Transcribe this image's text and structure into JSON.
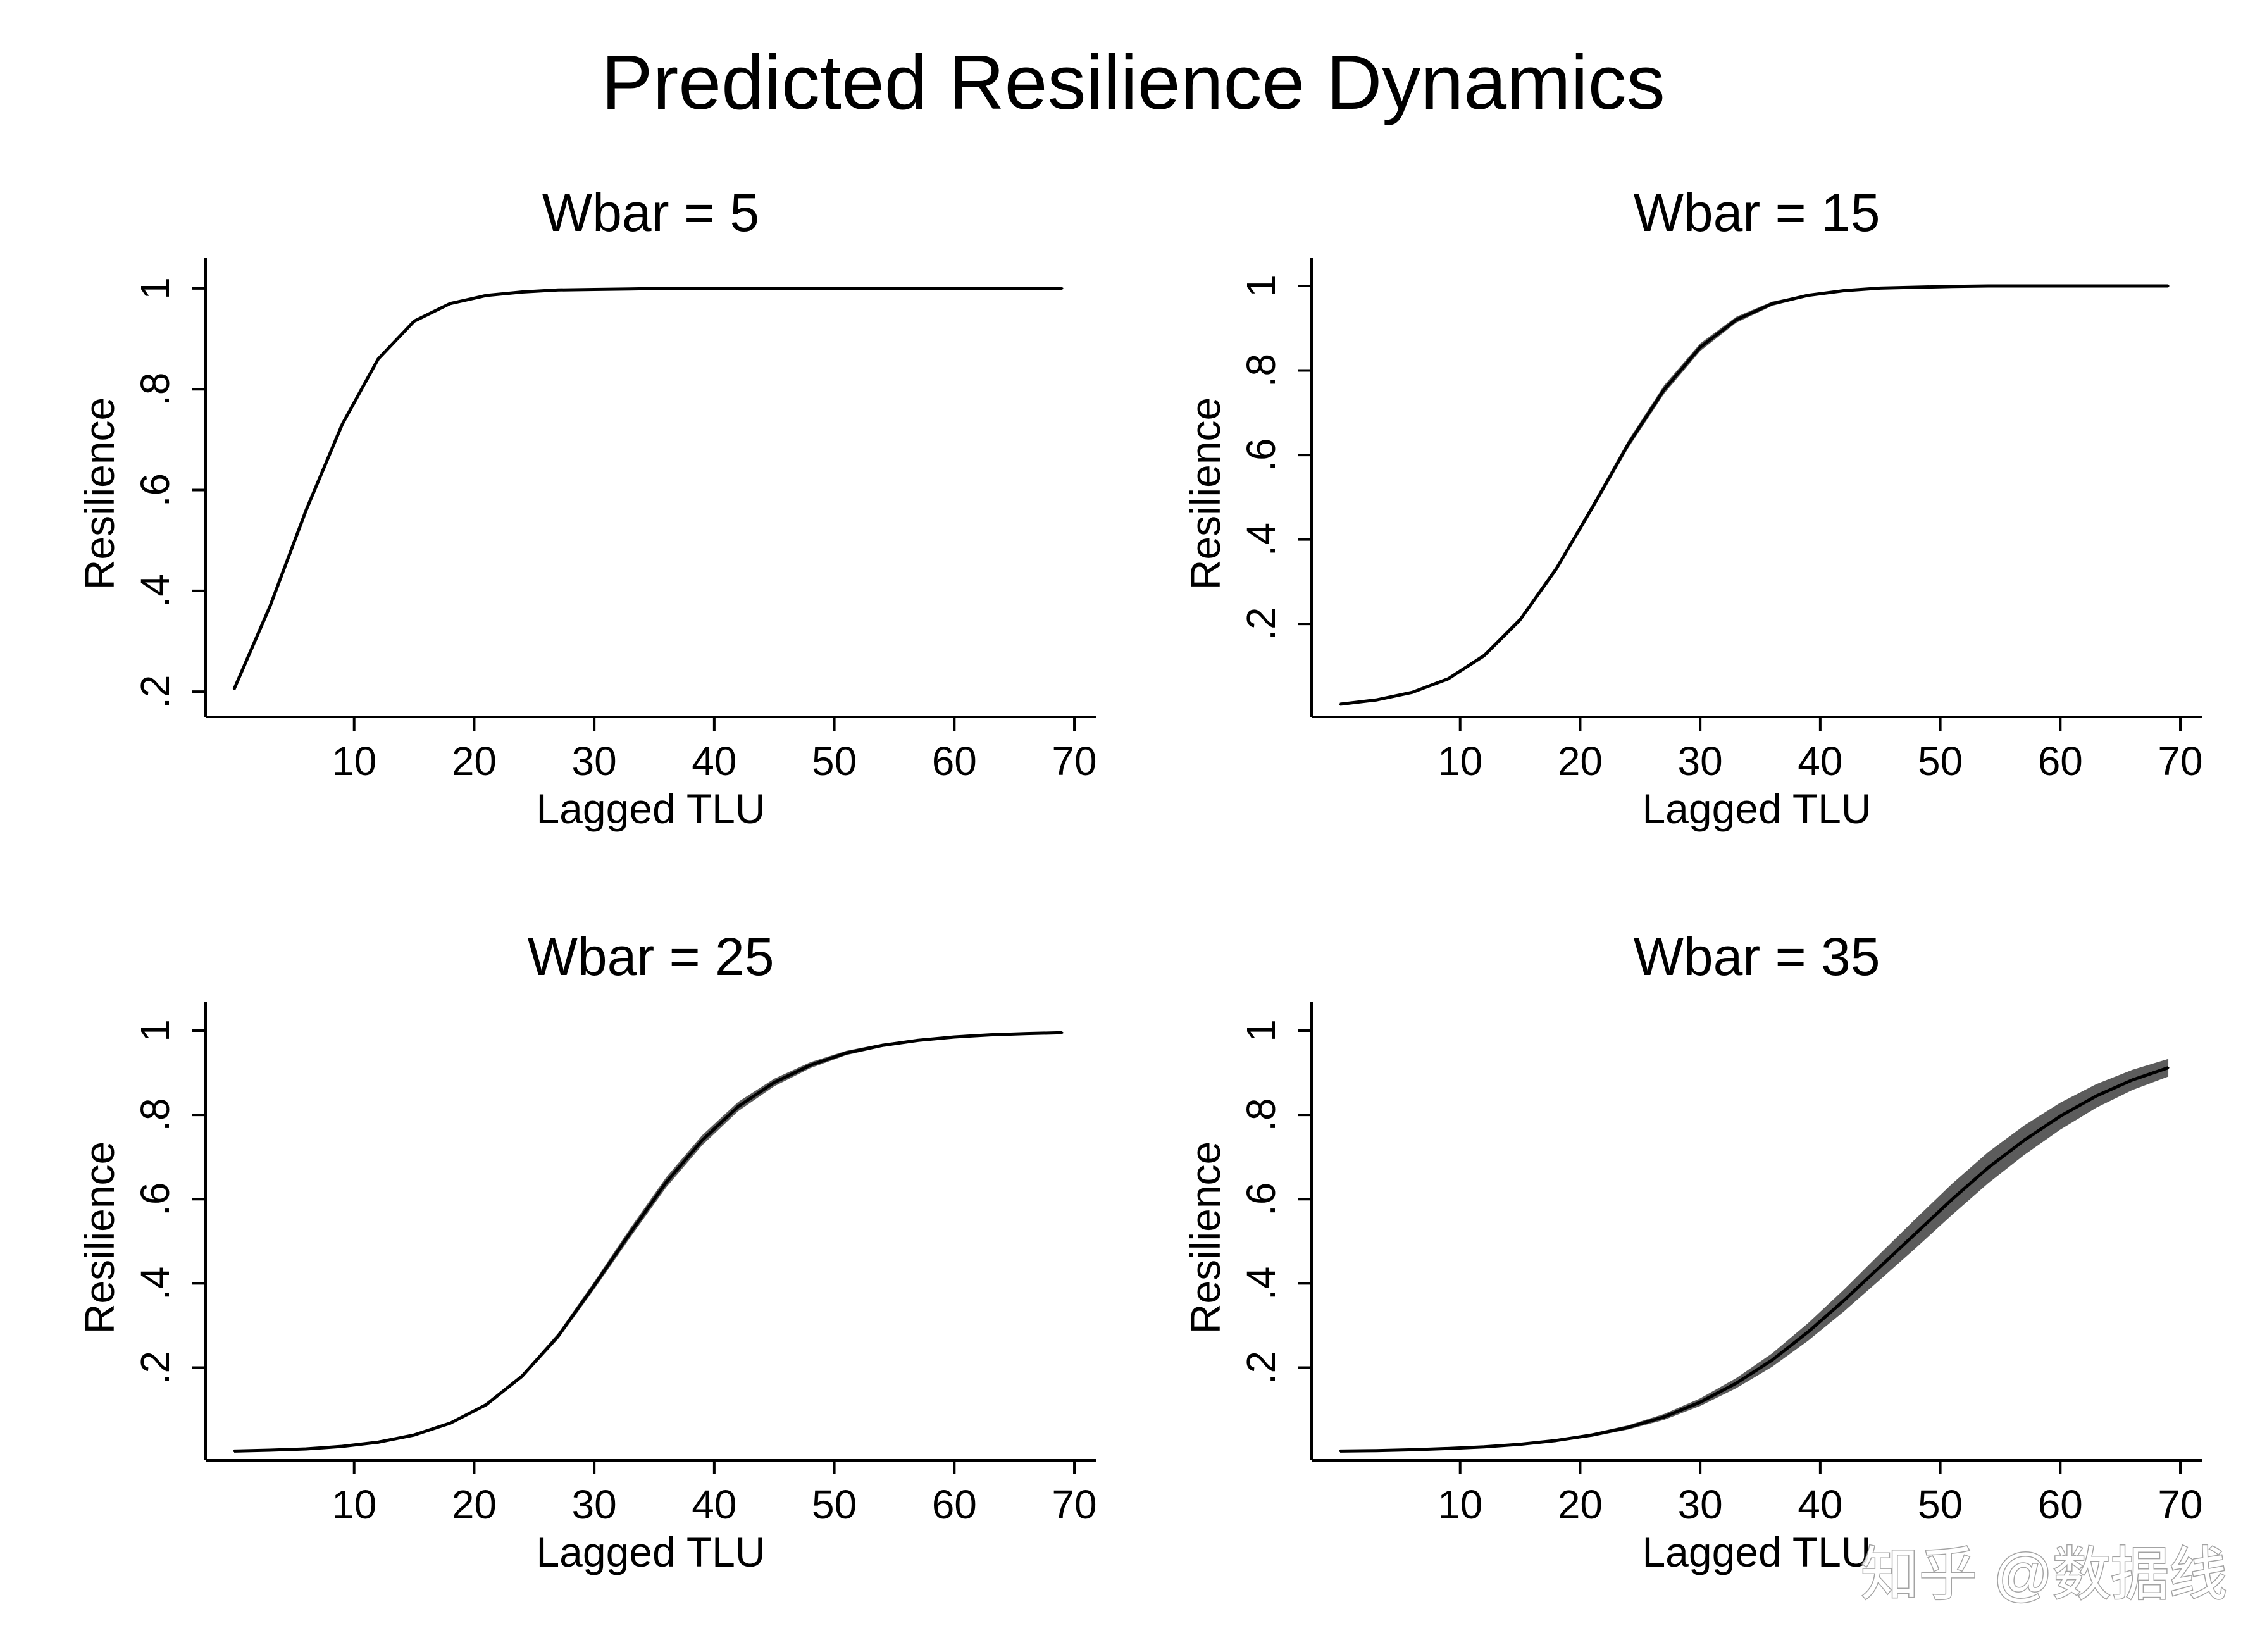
{
  "figure": {
    "title": "Predicted Resilience Dynamics",
    "watermark": "知乎 @数据线"
  },
  "colors": {
    "line": "#000000",
    "band": "#5c5c5c",
    "axis": "#000000",
    "background": "#ffffff"
  },
  "chart_data": [
    {
      "type": "line",
      "title": "Wbar = 5",
      "xlabel": "Lagged TLU",
      "ylabel": "Resilience",
      "xlim": [
        0,
        71
      ],
      "ylim": [
        0.15,
        1.03
      ],
      "xticks": [
        10,
        20,
        30,
        40,
        50,
        60,
        70
      ],
      "xtick_labels": [
        "10",
        "20",
        "30",
        "40",
        "50",
        "60",
        "70"
      ],
      "yticks": [
        0.2,
        0.4,
        0.6,
        0.8,
        1.0
      ],
      "ytick_labels": [
        ".2",
        ".4",
        ".6",
        ".8",
        "1"
      ],
      "grid": false,
      "x": [
        0,
        3,
        6,
        9,
        12,
        15,
        18,
        21,
        24,
        27,
        30,
        33,
        36,
        39,
        42,
        45,
        48,
        51,
        54,
        57,
        60,
        63,
        66,
        69
      ],
      "series": [
        {
          "values": [
            0.205,
            0.37,
            0.56,
            0.73,
            0.86,
            0.935,
            0.97,
            0.986,
            0.993,
            0.997,
            0.998,
            0.999,
            1,
            1,
            1,
            1,
            1,
            1,
            1,
            1,
            1,
            1,
            1,
            1
          ],
          "ci": 0.002
        }
      ]
    },
    {
      "type": "line",
      "title": "Wbar = 15",
      "xlabel": "Lagged TLU",
      "ylabel": "Resilience",
      "xlim": [
        0,
        71
      ],
      "ylim": [
        -0.02,
        1.03
      ],
      "xticks": [
        10,
        20,
        30,
        40,
        50,
        60,
        70
      ],
      "xtick_labels": [
        "10",
        "20",
        "30",
        "40",
        "50",
        "60",
        "70"
      ],
      "yticks": [
        0.2,
        0.4,
        0.6,
        0.8,
        1.0
      ],
      "ytick_labels": [
        ".2",
        ".4",
        ".6",
        ".8",
        "1"
      ],
      "grid": false,
      "x": [
        0,
        3,
        6,
        9,
        12,
        15,
        18,
        21,
        24,
        27,
        30,
        33,
        36,
        39,
        42,
        45,
        48,
        51,
        54,
        57,
        60,
        63,
        66,
        69
      ],
      "series": [
        {
          "values": [
            0.01,
            0.02,
            0.038,
            0.07,
            0.125,
            0.21,
            0.33,
            0.475,
            0.625,
            0.755,
            0.855,
            0.92,
            0.958,
            0.978,
            0.989,
            0.995,
            0.997,
            0.999,
            1,
            1,
            1,
            1,
            1,
            1
          ],
          "ci": [
            0.002,
            0.002,
            0.003,
            0.004,
            0.005,
            0.006,
            0.007,
            0.008,
            0.009,
            0.01,
            0.009,
            0.007,
            0.005,
            0.003,
            0.002,
            0.002,
            0.001,
            0.001,
            0.001,
            0.001,
            0.001,
            0.001,
            0.001,
            0.001
          ]
        }
      ]
    },
    {
      "type": "line",
      "title": "Wbar = 25",
      "xlabel": "Lagged TLU",
      "ylabel": "Resilience",
      "xlim": [
        0,
        71
      ],
      "ylim": [
        -0.02,
        1.03
      ],
      "xticks": [
        10,
        20,
        30,
        40,
        50,
        60,
        70
      ],
      "xtick_labels": [
        "10",
        "20",
        "30",
        "40",
        "50",
        "60",
        "70"
      ],
      "yticks": [
        0.2,
        0.4,
        0.6,
        0.8,
        1.0
      ],
      "ytick_labels": [
        ".2",
        ".4",
        ".6",
        ".8",
        "1"
      ],
      "grid": false,
      "x": [
        0,
        3,
        6,
        9,
        12,
        15,
        18,
        21,
        24,
        27,
        30,
        33,
        36,
        39,
        42,
        45,
        48,
        51,
        54,
        57,
        60,
        63,
        66,
        69
      ],
      "series": [
        {
          "values": [
            0.002,
            0.004,
            0.007,
            0.013,
            0.023,
            0.04,
            0.068,
            0.112,
            0.18,
            0.275,
            0.395,
            0.52,
            0.64,
            0.74,
            0.82,
            0.877,
            0.918,
            0.947,
            0.965,
            0.977,
            0.985,
            0.99,
            0.993,
            0.995
          ],
          "ci": [
            0.001,
            0.001,
            0.001,
            0.001,
            0.002,
            0.002,
            0.003,
            0.004,
            0.005,
            0.007,
            0.009,
            0.011,
            0.012,
            0.012,
            0.011,
            0.009,
            0.007,
            0.005,
            0.004,
            0.003,
            0.002,
            0.002,
            0.001,
            0.001
          ]
        }
      ]
    },
    {
      "type": "line",
      "title": "Wbar = 35",
      "xlabel": "Lagged TLU",
      "ylabel": "Resilience",
      "xlim": [
        0,
        71
      ],
      "ylim": [
        -0.02,
        1.03
      ],
      "xticks": [
        10,
        20,
        30,
        40,
        50,
        60,
        70
      ],
      "xtick_labels": [
        "10",
        "20",
        "30",
        "40",
        "50",
        "60",
        "70"
      ],
      "yticks": [
        0.2,
        0.4,
        0.6,
        0.8,
        1.0
      ],
      "ytick_labels": [
        ".2",
        ".4",
        ".6",
        ".8",
        "1"
      ],
      "grid": false,
      "x": [
        0,
        3,
        6,
        9,
        12,
        15,
        18,
        21,
        24,
        27,
        30,
        33,
        36,
        39,
        42,
        45,
        48,
        51,
        54,
        57,
        60,
        63,
        66,
        69
      ],
      "series": [
        {
          "values": [
            0.002,
            0.003,
            0.005,
            0.008,
            0.012,
            0.018,
            0.027,
            0.04,
            0.058,
            0.083,
            0.118,
            0.163,
            0.218,
            0.285,
            0.36,
            0.44,
            0.52,
            0.6,
            0.675,
            0.74,
            0.797,
            0.845,
            0.883,
            0.912
          ],
          "ci": [
            0.001,
            0.001,
            0.001,
            0.001,
            0.002,
            0.002,
            0.003,
            0.004,
            0.005,
            0.007,
            0.009,
            0.012,
            0.016,
            0.021,
            0.026,
            0.031,
            0.035,
            0.037,
            0.037,
            0.035,
            0.032,
            0.028,
            0.024,
            0.021
          ]
        }
      ]
    }
  ]
}
